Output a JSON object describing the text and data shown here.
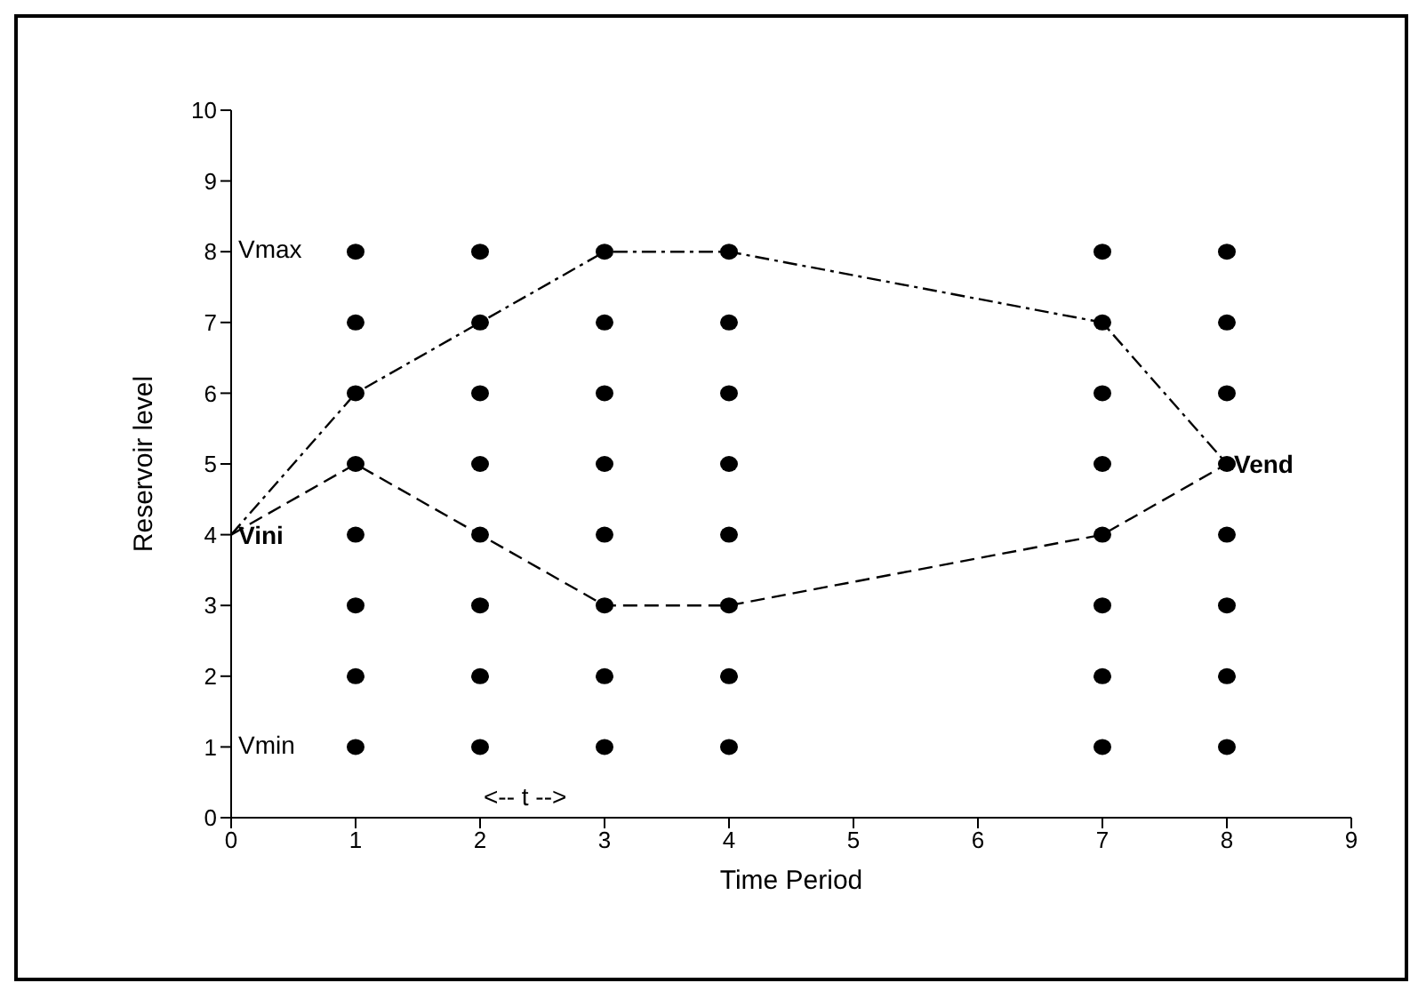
{
  "chart_data": {
    "type": "scatter",
    "xlabel": "Time Period",
    "ylabel": "Reservoir level",
    "xlim": [
      0,
      9
    ],
    "xticks": [
      0,
      1,
      2,
      3,
      4,
      5,
      6,
      7,
      8,
      9
    ],
    "ylim": [
      0,
      10
    ],
    "yticks": [
      0,
      1,
      2,
      3,
      4,
      5,
      6,
      7,
      8,
      9,
      10
    ],
    "grid": false,
    "legend": false,
    "series": [
      {
        "color": "#000000",
        "marker": "circle",
        "x": [
          1,
          1,
          1,
          1,
          1,
          1,
          1,
          1,
          2,
          2,
          2,
          2,
          2,
          2,
          2,
          2,
          3,
          3,
          3,
          3,
          3,
          3,
          3,
          3,
          4,
          4,
          4,
          4,
          4,
          4,
          4,
          4,
          7,
          7,
          7,
          7,
          7,
          7,
          7,
          7,
          8,
          8,
          8,
          8,
          8,
          8,
          8,
          8
        ],
        "values": [
          1,
          2,
          3,
          4,
          5,
          6,
          7,
          8,
          1,
          2,
          3,
          4,
          5,
          6,
          7,
          8,
          1,
          2,
          3,
          4,
          5,
          6,
          7,
          8,
          1,
          2,
          3,
          4,
          5,
          6,
          7,
          8,
          1,
          2,
          3,
          4,
          5,
          6,
          7,
          8,
          1,
          2,
          3,
          4,
          5,
          6,
          7,
          8
        ]
      },
      {
        "type": "line",
        "color": "#000000",
        "marker": "none",
        "line_style": "dashdot",
        "x": [
          0,
          1,
          2,
          3,
          4,
          7,
          8
        ],
        "values": [
          4,
          6,
          7,
          8,
          8,
          7,
          5
        ]
      },
      {
        "type": "line",
        "color": "#000000",
        "marker": "none",
        "line_style": "dashed",
        "x": [
          0,
          1,
          2,
          3,
          4,
          7,
          8
        ],
        "values": [
          4,
          5,
          4,
          3,
          3,
          4,
          5
        ]
      }
    ],
    "annotations": [
      "Vmax",
      "Vmin",
      {
        "text": "Vini",
        "x": 0,
        "y": 4
      },
      {
        "text": "Vend",
        "x": 8,
        "y": 5
      },
      "<-- t -->"
    ]
  }
}
